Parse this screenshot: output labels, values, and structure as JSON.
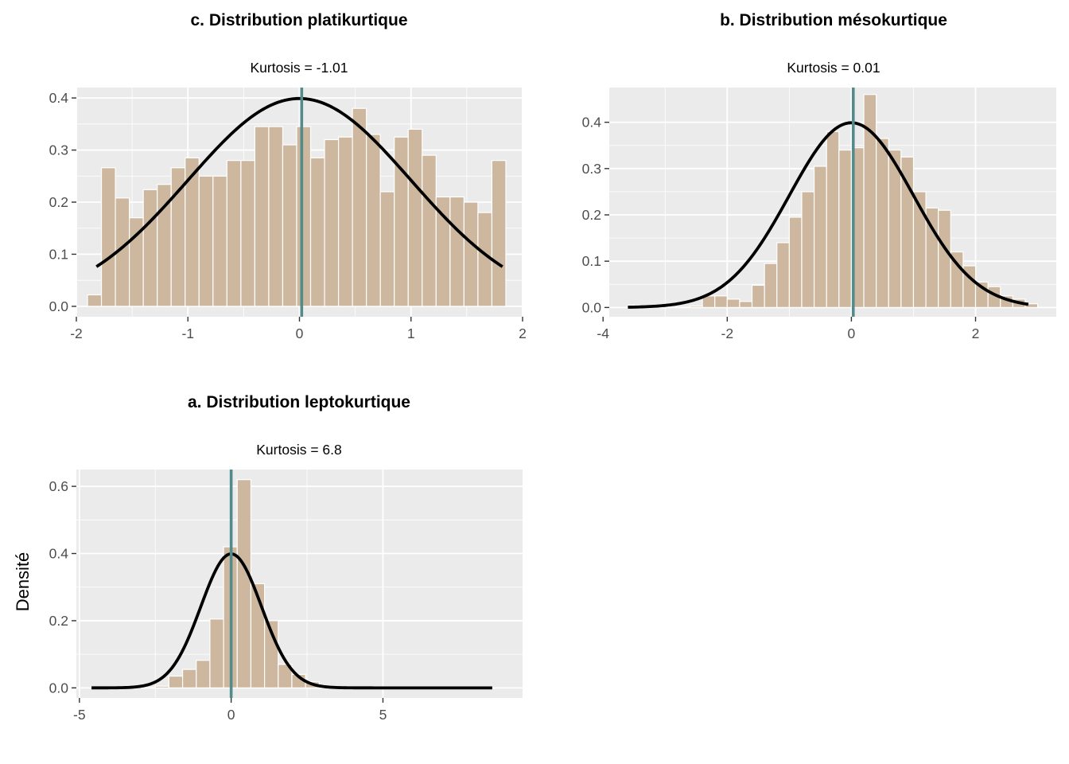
{
  "figure": {
    "ylabel": "Densité",
    "colors": {
      "bar_fill": "#cdb79e",
      "bar_border": "#ffffff",
      "panel_bg": "#ebebeb",
      "grid": "#ffffff",
      "mean_line": "#528b8b",
      "density_line": "#000000"
    }
  },
  "chart_data": [
    {
      "type": "bar",
      "title": "c. Distribution platikurtique",
      "subtitle": "Kurtosis = -1.01",
      "xlim": [
        -2.0,
        2.0
      ],
      "ylim": [
        -0.02,
        0.42
      ],
      "xticks": [
        -2,
        -1,
        0,
        1,
        2
      ],
      "xtick_labels": [
        "-2",
        "-1",
        "0",
        "1",
        "2"
      ],
      "yticks": [
        0.0,
        0.1,
        0.2,
        0.3,
        0.4
      ],
      "ytick_labels": [
        "0.0",
        "0.1",
        "0.2",
        "0.3",
        "0.4"
      ],
      "bin_width": 0.125,
      "bin_start": -1.9,
      "values": [
        0.022,
        0.266,
        0.208,
        0.17,
        0.224,
        0.234,
        0.266,
        0.285,
        0.25,
        0.25,
        0.28,
        0.28,
        0.345,
        0.345,
        0.31,
        0.345,
        0.285,
        0.32,
        0.325,
        0.38,
        0.33,
        0.22,
        0.325,
        0.34,
        0.29,
        0.21,
        0.21,
        0.2,
        0.18,
        0.28
      ],
      "mean": 0.02,
      "density": {
        "mu": 0.0,
        "sigma": 1.0,
        "x_range": [
          -1.82,
          1.82
        ]
      }
    },
    {
      "type": "bar",
      "title": "b. Distribution mésokurtique",
      "subtitle": "Kurtosis = 0.01",
      "xlim": [
        -3.9,
        3.3
      ],
      "ylim": [
        -0.02,
        0.475
      ],
      "xticks": [
        -4,
        -2,
        0,
        2
      ],
      "xtick_labels": [
        "-4",
        "-2",
        "0",
        "2"
      ],
      "yticks": [
        0.0,
        0.1,
        0.2,
        0.3,
        0.4
      ],
      "ytick_labels": [
        "0.0",
        "0.1",
        "0.2",
        "0.3",
        "0.4"
      ],
      "bin_width": 0.2,
      "bin_start": -3.6,
      "values": [
        0.005,
        0.0,
        0.0,
        0.0,
        0.0,
        0.003,
        0.025,
        0.025,
        0.018,
        0.013,
        0.048,
        0.095,
        0.14,
        0.195,
        0.25,
        0.305,
        0.38,
        0.34,
        0.345,
        0.46,
        0.365,
        0.34,
        0.325,
        0.25,
        0.215,
        0.21,
        0.12,
        0.09,
        0.055,
        0.045,
        0.025,
        0.018,
        0.008
      ],
      "mean": 0.03,
      "density": {
        "mu": 0.0,
        "sigma": 1.0,
        "x_range": [
          -3.6,
          2.85
        ]
      }
    },
    {
      "type": "bar",
      "title": "a. Distribution leptokurtique",
      "subtitle": "Kurtosis = 6.8",
      "xlim": [
        -5.1,
        9.6
      ],
      "ylim": [
        -0.03,
        0.65
      ],
      "xticks": [
        -5,
        0,
        5
      ],
      "xtick_labels": [
        "-5",
        "0",
        "5"
      ],
      "yticks": [
        0.0,
        0.2,
        0.4,
        0.6
      ],
      "ytick_labels": [
        "0.0",
        "0.2",
        "0.4",
        "0.6"
      ],
      "bin_width": 0.45,
      "bin_start": -2.5,
      "values": [
        0.005,
        0.035,
        0.055,
        0.082,
        0.205,
        0.42,
        0.62,
        0.31,
        0.2,
        0.07,
        0.04,
        0.018
      ],
      "mean": 0.0,
      "density": {
        "mu": 0.0,
        "sigma": 1.0,
        "x_range": [
          -4.6,
          8.6
        ]
      }
    }
  ]
}
